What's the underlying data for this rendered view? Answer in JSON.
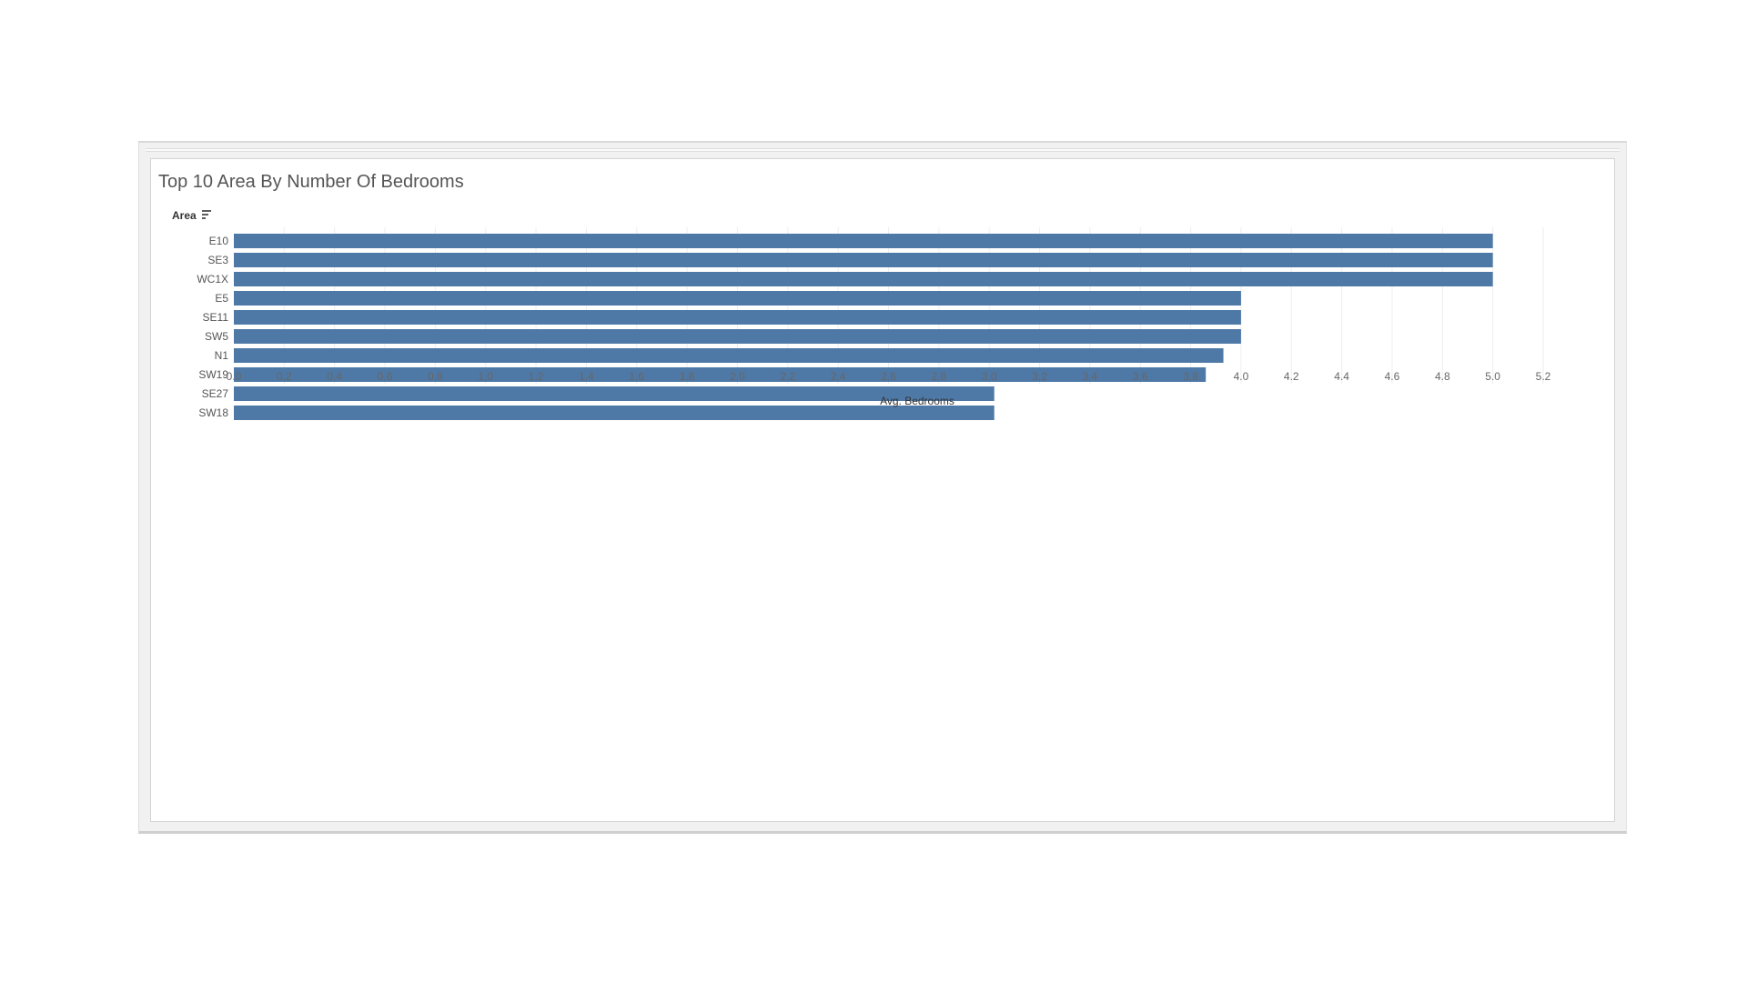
{
  "chart_data": {
    "type": "bar",
    "orientation": "horizontal",
    "title": "Top 10 Area By Number Of Bedrooms",
    "category_axis_label": "Area",
    "xlabel": "Avg. Bedrooms",
    "categories": [
      "E10",
      "SE3",
      "WC1X",
      "E5",
      "SE11",
      "SW5",
      "N1",
      "SW19",
      "SE27",
      "SW18"
    ],
    "values": [
      5.0,
      5.0,
      5.0,
      4.0,
      4.0,
      4.0,
      3.93,
      3.86,
      3.02,
      3.02
    ],
    "xlim": [
      0,
      5.2
    ],
    "xticks": [
      "0.0",
      "0.2",
      "0.4",
      "0.6",
      "0.8",
      "1.0",
      "1.2",
      "1.4",
      "1.6",
      "1.8",
      "2.0",
      "2.2",
      "2.4",
      "2.6",
      "2.8",
      "3.0",
      "3.2",
      "3.4",
      "3.6",
      "3.8",
      "4.0",
      "4.2",
      "4.4",
      "4.6",
      "4.8",
      "5.0",
      "5.2"
    ],
    "grid": "vertical",
    "sorted": "descending",
    "bar_color": "#4e79a7",
    "grid_color": "#eeeeee"
  }
}
